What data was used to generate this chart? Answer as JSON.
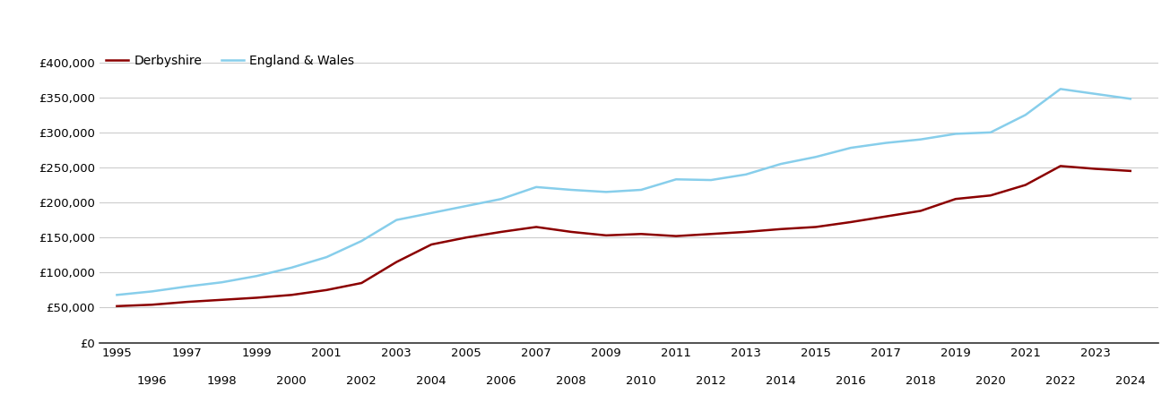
{
  "derbyshire": {
    "years": [
      1995,
      1996,
      1997,
      1998,
      1999,
      2000,
      2001,
      2002,
      2003,
      2004,
      2005,
      2006,
      2007,
      2008,
      2009,
      2010,
      2011,
      2012,
      2013,
      2014,
      2015,
      2016,
      2017,
      2018,
      2019,
      2020,
      2021,
      2022,
      2023,
      2024
    ],
    "values": [
      52000,
      54000,
      58000,
      61000,
      64000,
      68000,
      75000,
      85000,
      115000,
      140000,
      150000,
      158000,
      165000,
      158000,
      153000,
      155000,
      152000,
      155000,
      158000,
      162000,
      165000,
      172000,
      180000,
      188000,
      205000,
      210000,
      225000,
      252000,
      248000,
      245000
    ]
  },
  "england_wales": {
    "years": [
      1995,
      1996,
      1997,
      1998,
      1999,
      2000,
      2001,
      2002,
      2003,
      2004,
      2005,
      2006,
      2007,
      2008,
      2009,
      2010,
      2011,
      2012,
      2013,
      2014,
      2015,
      2016,
      2017,
      2018,
      2019,
      2020,
      2021,
      2022,
      2023,
      2024
    ],
    "values": [
      68000,
      73000,
      80000,
      86000,
      95000,
      107000,
      122000,
      145000,
      175000,
      185000,
      195000,
      205000,
      222000,
      218000,
      215000,
      218000,
      233000,
      232000,
      240000,
      255000,
      265000,
      278000,
      285000,
      290000,
      298000,
      300000,
      325000,
      362000,
      355000,
      348000
    ]
  },
  "derbyshire_color": "#8B0000",
  "england_wales_color": "#87CEEB",
  "background_color": "#ffffff",
  "grid_color": "#cccccc",
  "ylim": [
    0,
    420000
  ],
  "yticks": [
    0,
    50000,
    100000,
    150000,
    200000,
    250000,
    300000,
    350000,
    400000
  ],
  "ytick_labels": [
    "£0",
    "£50,000",
    "£100,000",
    "£150,000",
    "£200,000",
    "£250,000",
    "£300,000",
    "£350,000",
    "£400,000"
  ],
  "line_width": 1.8,
  "legend_labels": [
    "Derbyshire",
    "England & Wales"
  ]
}
